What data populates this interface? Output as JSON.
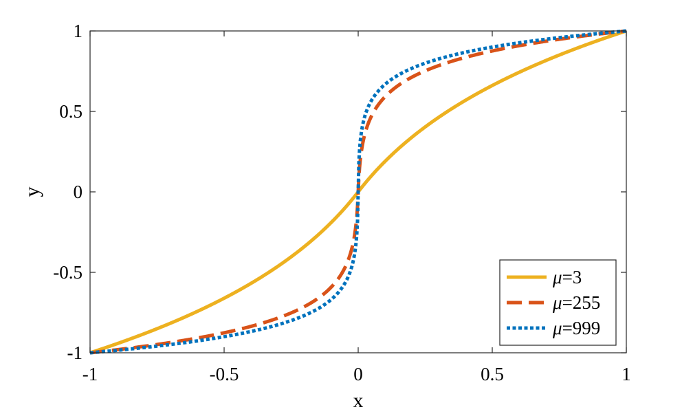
{
  "chart_data": {
    "type": "line",
    "xlabel": "x",
    "ylabel": "y",
    "xlim": [
      -1,
      1
    ],
    "ylim": [
      -1,
      1
    ],
    "xticks": [
      -1,
      -0.5,
      0,
      0.5,
      1
    ],
    "yticks": [
      -1,
      -0.5,
      0,
      0.5,
      1
    ],
    "xtick_labels": [
      "-1",
      "-0.5",
      "0",
      "0.5",
      "1"
    ],
    "ytick_labels": [
      "-1",
      "-0.5",
      "0",
      "0.5",
      "1"
    ],
    "grid": false,
    "legend_position": "bottom-right",
    "x": [
      -1,
      -0.9,
      -0.8,
      -0.7,
      -0.6,
      -0.5,
      -0.4,
      -0.3,
      -0.2,
      -0.1,
      -0.05,
      -0.02,
      -0.01,
      0,
      0.01,
      0.02,
      0.05,
      0.1,
      0.2,
      0.3,
      0.4,
      0.5,
      0.6,
      0.7,
      0.8,
      0.9,
      1
    ],
    "series": [
      {
        "name": "μ=3",
        "mu": 3,
        "color": "#EDB120",
        "dash": "solid",
        "values": [
          -1,
          -0.926,
          -0.848,
          -0.766,
          -0.678,
          -0.585,
          -0.485,
          -0.377,
          -0.263,
          -0.137,
          -0.07,
          -0.029,
          -0.014,
          0,
          0.014,
          0.029,
          0.07,
          0.137,
          0.263,
          0.377,
          0.485,
          0.585,
          0.678,
          0.766,
          0.848,
          0.926,
          1
        ]
      },
      {
        "name": "μ=255",
        "mu": 255,
        "color": "#D95319",
        "dash": "dashed",
        "values": [
          -1,
          -0.981,
          -0.96,
          -0.936,
          -0.909,
          -0.877,
          -0.839,
          -0.787,
          -0.714,
          -0.59,
          -0.475,
          -0.328,
          -0.228,
          0,
          0.228,
          0.328,
          0.475,
          0.59,
          0.714,
          0.787,
          0.839,
          0.877,
          0.909,
          0.936,
          0.96,
          0.981,
          1
        ]
      },
      {
        "name": "μ=999",
        "mu": 999,
        "color": "#0072BD",
        "dash": "dotted",
        "values": [
          -1,
          -0.985,
          -0.968,
          -0.948,
          -0.926,
          -0.9,
          -0.867,
          -0.826,
          -0.768,
          -0.668,
          -0.568,
          -0.437,
          -0.347,
          0,
          0.347,
          0.437,
          0.568,
          0.668,
          0.768,
          0.826,
          0.867,
          0.9,
          0.926,
          0.948,
          0.968,
          0.985,
          1
        ]
      }
    ]
  }
}
